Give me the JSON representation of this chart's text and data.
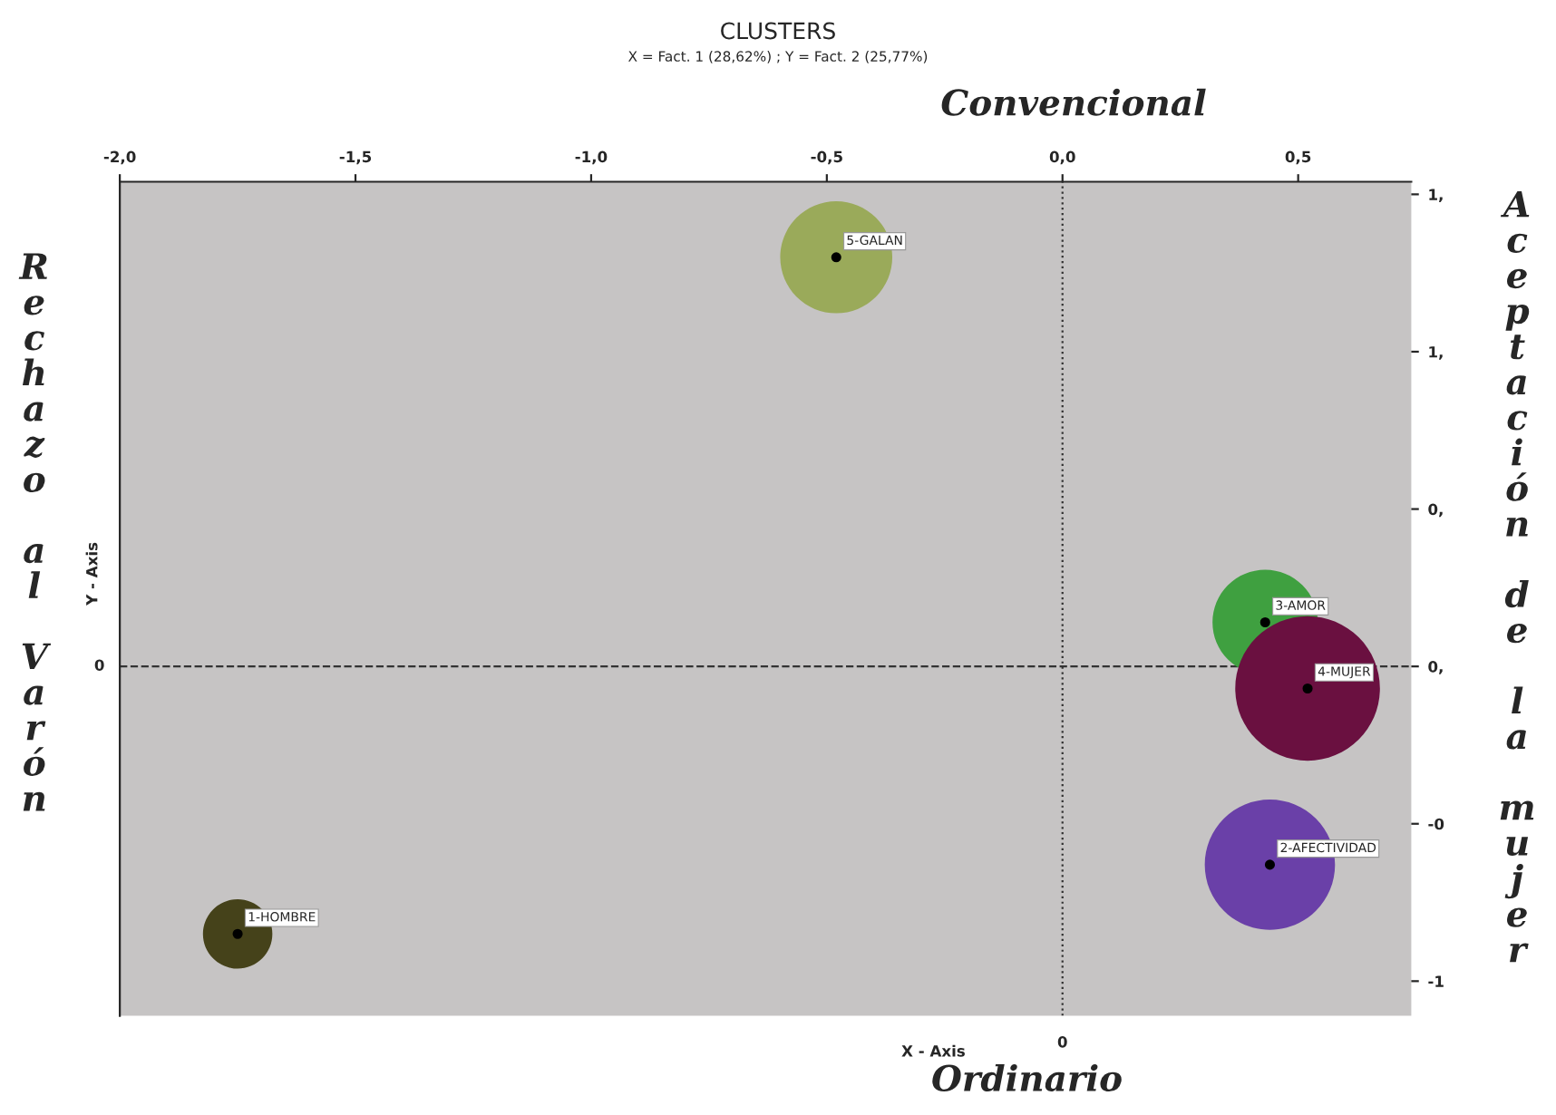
{
  "chart_data": {
    "type": "bubble",
    "title": "CLUSTERS",
    "subtitle": "X = Fact. 1 (28,62%) ; Y = Fact. 2 (25,77%)",
    "xlabel": "X - Axis",
    "ylabel": "Y - Axis",
    "series": [
      {
        "name": "5-GALAN",
        "color": "#9aaa5a",
        "x": [
          -0.48
        ],
        "values": [
          1.3
        ],
        "sizes": [
          0.6
        ]
      },
      {
        "name": "3-AMOR",
        "color": "#3fa040",
        "x": [
          0.43
        ],
        "values": [
          0.14
        ],
        "sizes": [
          0.53
        ]
      },
      {
        "name": "4-MUJER",
        "color": "#6a1040",
        "x": [
          0.52
        ],
        "values": [
          -0.07
        ],
        "sizes": [
          1
        ]
      },
      {
        "name": "2-AFECTIVIDAD",
        "color": "#6a40a8",
        "x": [
          0.44
        ],
        "values": [
          -0.63
        ],
        "sizes": [
          0.81
        ]
      },
      {
        "name": "1-HOMBRE",
        "color": "#45421a",
        "x": [
          -1.75
        ],
        "values": [
          -0.85
        ],
        "sizes": [
          0.23
        ]
      }
    ],
    "xlim": [
      -2.0,
      0.74
    ],
    "ylim": [
      -1.11,
      1.54
    ],
    "xticks": [
      {
        "value": -2.0,
        "label": "-2,0"
      },
      {
        "value": -1.5,
        "label": "-1,5"
      },
      {
        "value": -1.0,
        "label": "-1,0"
      },
      {
        "value": -0.5,
        "label": "-0,5"
      },
      {
        "value": 0.0,
        "label": "0,0"
      },
      {
        "value": 0.5,
        "label": "0,5"
      }
    ],
    "yticks": [
      {
        "value": -1.0,
        "label": "-1"
      },
      {
        "value": -0.5,
        "label": "-0"
      },
      {
        "value": 0.0,
        "label": "0,"
      },
      {
        "value": 0.5,
        "label": "0,"
      },
      {
        "value": 1.0,
        "label": "1,"
      },
      {
        "value": 1.5,
        "label": "1,"
      }
    ],
    "ref_lines": [
      {
        "axis": "x",
        "value": 0,
        "label": "0",
        "line_style": "dotted"
      },
      {
        "axis": "y",
        "value": 0,
        "label": "0",
        "line_style": "dashed"
      }
    ],
    "annotations": [
      "Convencional",
      "Ordinario",
      "Rechazo al Varón",
      "Aceptación de la mujer"
    ],
    "grid": false
  }
}
